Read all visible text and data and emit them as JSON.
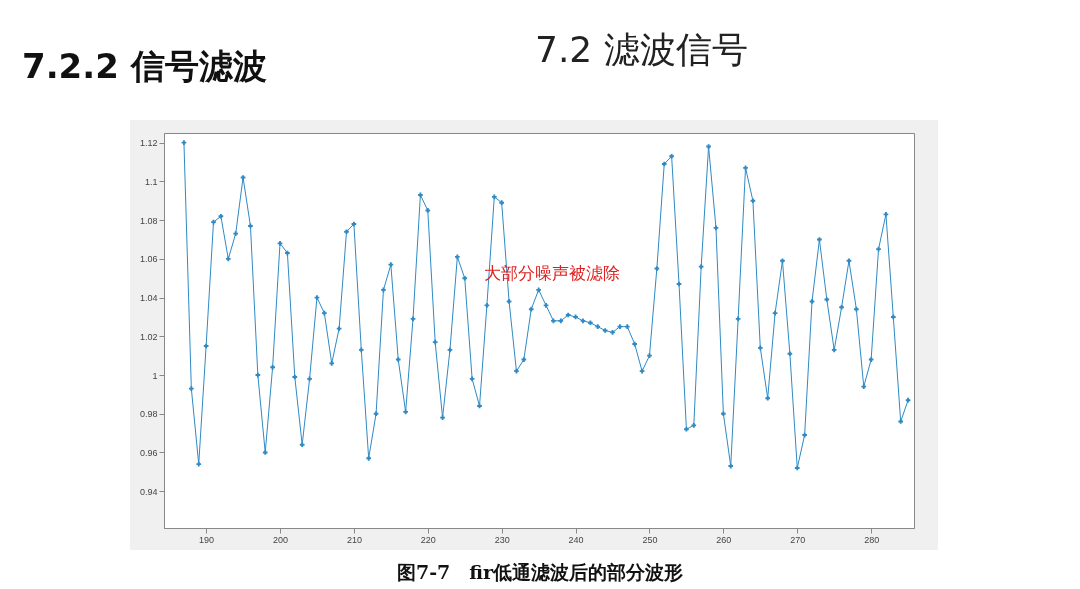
{
  "chart_data": {
    "type": "line",
    "title": "7.2.2 信号滤波",
    "subtitle": "7.2 滤波信号",
    "x": [
      187,
      188,
      189,
      190,
      191,
      192,
      193,
      194,
      195,
      196,
      197,
      198,
      199,
      200,
      201,
      202,
      203,
      204,
      205,
      206,
      207,
      208,
      209,
      210,
      211,
      212,
      213,
      214,
      215,
      216,
      217,
      218,
      219,
      220,
      221,
      222,
      223,
      224,
      225,
      226,
      227,
      228,
      229,
      230,
      231,
      232,
      233,
      234,
      235,
      236,
      237,
      238,
      239,
      240,
      241,
      242,
      243,
      244,
      245,
      246,
      247,
      248,
      249,
      250,
      251,
      252,
      253,
      254,
      255,
      256,
      257,
      258,
      259,
      260,
      261,
      262,
      263,
      264,
      265,
      266,
      267,
      268,
      269,
      270,
      271,
      272,
      273,
      274,
      275,
      276,
      277,
      278,
      279,
      280,
      281,
      282,
      283,
      284,
      285
    ],
    "series": [
      {
        "color": "#2f8ac4",
        "values": [
          1.12,
          0.993,
          0.954,
          1.015,
          1.079,
          1.082,
          1.06,
          1.073,
          1.102,
          1.077,
          1.0,
          0.96,
          1.004,
          1.068,
          1.063,
          0.999,
          0.964,
          0.998,
          1.04,
          1.032,
          1.006,
          1.024,
          1.074,
          1.078,
          1.013,
          0.957,
          0.98,
          1.044,
          1.057,
          1.008,
          0.981,
          1.029,
          1.093,
          1.085,
          1.017,
          0.978,
          1.013,
          1.061,
          1.05,
          0.998,
          0.984,
          1.036,
          1.092,
          1.089,
          1.038,
          1.002,
          1.008,
          1.034,
          1.044,
          1.036,
          1.028,
          1.028,
          1.031,
          1.03,
          1.028,
          1.027,
          1.025,
          1.023,
          1.022,
          1.025,
          1.025,
          1.016,
          1.002,
          1.01,
          1.055,
          1.109,
          1.113,
          1.047,
          0.972,
          0.974,
          1.056,
          1.118,
          1.076,
          0.98,
          0.953,
          1.029,
          1.107,
          1.09,
          1.014,
          0.988,
          1.032,
          1.059,
          1.011,
          0.952,
          0.969,
          1.038,
          1.07,
          1.039,
          1.013,
          1.035,
          1.059,
          1.034,
          0.994,
          1.008,
          1.065,
          1.083,
          1.03,
          0.976,
          0.987
        ]
      }
    ],
    "xlim": [
      184.3,
      285.8
    ],
    "ylim": [
      0.921,
      1.125
    ],
    "xticks": [
      190,
      200,
      210,
      220,
      230,
      240,
      250,
      260,
      270,
      280
    ],
    "yticks": [
      0.94,
      0.96,
      0.98,
      1,
      1.02,
      1.04,
      1.06,
      1.08,
      1.1,
      1.12
    ],
    "marker": "cross",
    "grid": false,
    "annotations": [
      "大部分噪声被滤除",
      "图7-7　fir低通滤波后的部分波形"
    ]
  }
}
